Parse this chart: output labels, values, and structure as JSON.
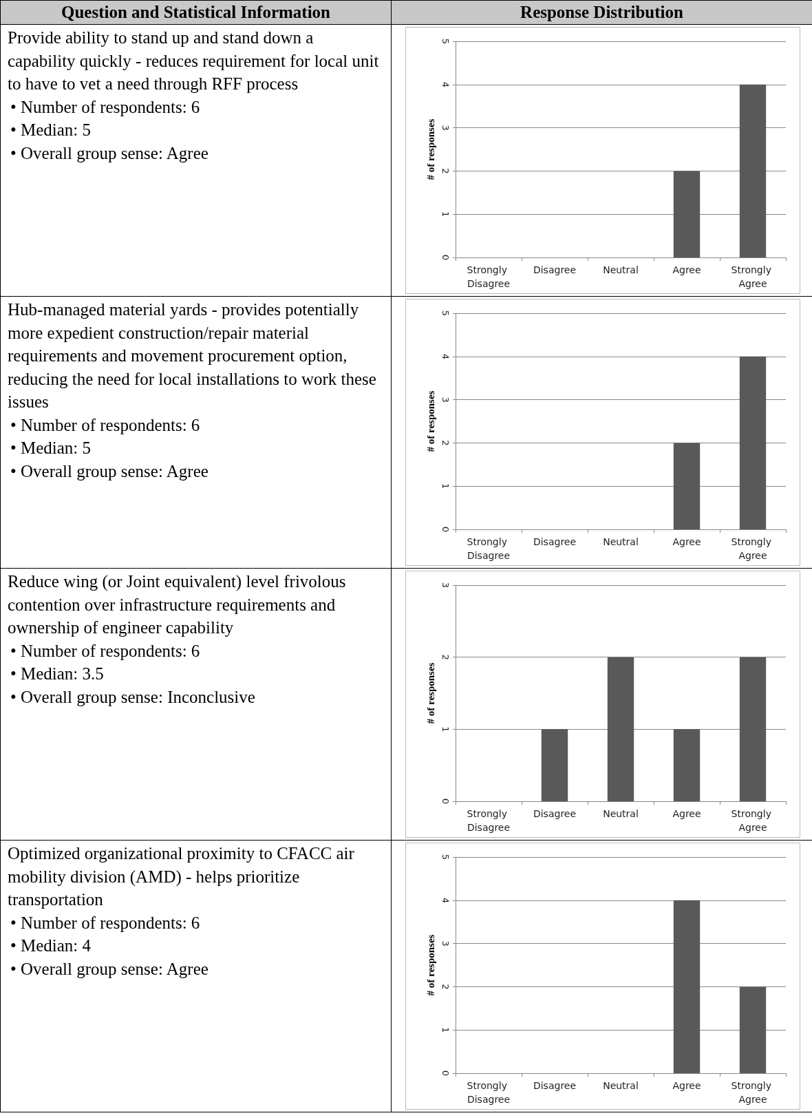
{
  "chart_data": [
    {
      "type": "other",
      "annotations": [
        "Question and Statistical Information",
        "Response Distribution"
      ]
    },
    {
      "type": "other",
      "title": "Provide ability to stand up and stand down a capability quickly - reduces requirement for local unit to have to vet a need through RFF process",
      "annotations": [
        "• Number of respondents: 6",
        "• Median: 5",
        "• Overall group sense: Agree"
      ]
    },
    {
      "type": "bar",
      "ylabel": "# of responses",
      "categories": [
        "Strongly Disagree",
        "Disagree",
        "Neutral",
        "Agree",
        "Strongly Agree"
      ],
      "values": [
        0,
        0,
        0,
        2,
        4
      ],
      "color": "#595959",
      "ylim": [
        0,
        5
      ],
      "yticks": [
        0,
        1,
        2,
        3,
        4,
        5
      ],
      "grid": "y"
    },
    {
      "type": "other",
      "title": "Hub-managed material yards - provides potentially more expedient construction/repair material requirements and movement procurement option, reducing the need for local installations to work these issues",
      "annotations": [
        "• Number of respondents: 6",
        "• Median: 5",
        "• Overall group sense: Agree"
      ]
    },
    {
      "type": "bar",
      "ylabel": "# of responses",
      "categories": [
        "Strongly Disagree",
        "Disagree",
        "Neutral",
        "Agree",
        "Strongly Agree"
      ],
      "values": [
        0,
        0,
        0,
        2,
        4
      ],
      "color": "#595959",
      "ylim": [
        0,
        5
      ],
      "yticks": [
        0,
        1,
        2,
        3,
        4,
        5
      ],
      "grid": "y"
    },
    {
      "type": "other",
      "title": "Reduce wing (or Joint equivalent) level frivolous contention over infrastructure requirements and ownership of engineer capability",
      "annotations": [
        "• Number of respondents: 6",
        "• Median: 3.5",
        "• Overall group sense: Inconclusive"
      ]
    },
    {
      "type": "bar",
      "ylabel": "# of responses",
      "categories": [
        "Strongly Disagree",
        "Disagree",
        "Neutral",
        "Agree",
        "Strongly Agree"
      ],
      "values": [
        0,
        1,
        2,
        1,
        2
      ],
      "color": "#595959",
      "ylim": [
        0,
        3
      ],
      "yticks": [
        0,
        1,
        2,
        3
      ],
      "grid": "y"
    },
    {
      "type": "other",
      "title": "Optimized organizational proximity to CFACC air mobility division (AMD) - helps prioritize transportation",
      "annotations": [
        "• Number of respondents: 6",
        "• Median: 4",
        "• Overall group sense: Agree"
      ]
    },
    {
      "type": "bar",
      "ylabel": "# of responses",
      "categories": [
        "Strongly Disagree",
        "Disagree",
        "Neutral",
        "Agree",
        "Strongly Agree"
      ],
      "values": [
        0,
        0,
        0,
        4,
        2
      ],
      "color": "#595959",
      "ylim": [
        0,
        5
      ],
      "yticks": [
        0,
        1,
        2,
        3,
        4,
        5
      ],
      "grid": "y"
    }
  ]
}
